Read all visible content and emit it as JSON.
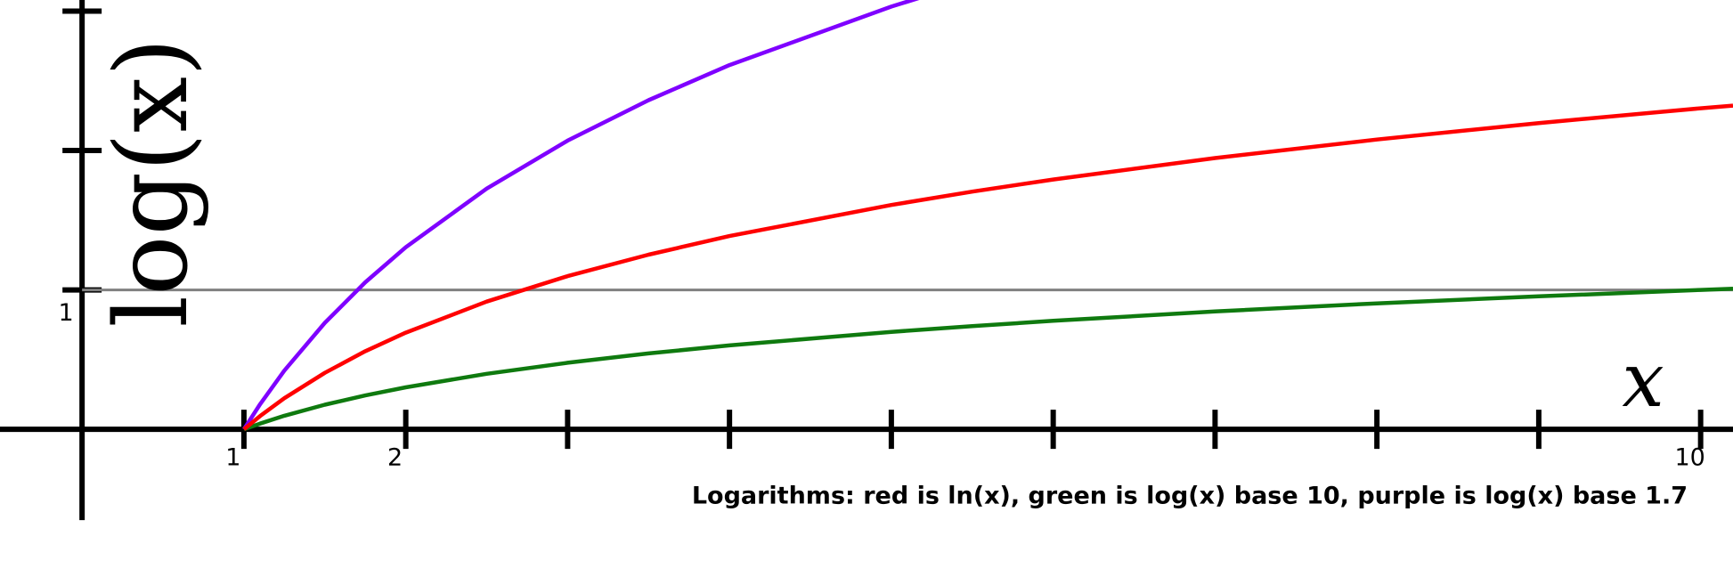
{
  "chart_data": {
    "type": "line",
    "x_label": "x",
    "y_label": "log(x)",
    "annotation": "Logarithms: red is ln(x), green is log(x) base 10, purple is log(x) base 1.7",
    "x": [
      1,
      1.1,
      1.25,
      1.5,
      1.75,
      2,
      2.5,
      3,
      3.5,
      4,
      5,
      5.5,
      6,
      7,
      8,
      9,
      10,
      10.2
    ],
    "series": [
      {
        "name": "ln(x)",
        "color": "#ff0000",
        "values": [
          0,
          0.095,
          0.223,
          0.405,
          0.56,
          0.693,
          0.916,
          1.099,
          1.253,
          1.386,
          1.609,
          1.705,
          1.792,
          1.946,
          2.079,
          2.197,
          2.303,
          2.322
        ]
      },
      {
        "name": "log(x) base 10",
        "color": "#0f7a0f",
        "values": [
          0,
          0.041,
          0.097,
          0.176,
          0.243,
          0.301,
          0.398,
          0.477,
          0.544,
          0.602,
          0.699,
          0.74,
          0.778,
          0.845,
          0.903,
          0.954,
          1,
          1.009
        ]
      },
      {
        "name": "log(x) base 1.7",
        "color": "#7f00ff",
        "values": [
          0,
          0.18,
          0.421,
          0.764,
          1.055,
          1.306,
          1.727,
          2.071,
          2.361,
          2.613,
          3.033,
          3.213,
          null,
          null,
          null,
          null,
          null,
          null
        ]
      }
    ],
    "xlim": [
      -0.507,
      10.2
    ],
    "ylim": [
      -1.06,
      3.08
    ],
    "xticks": [
      1,
      2,
      {
        "value": 3
      },
      {
        "value": 4
      },
      {
        "value": 5
      },
      {
        "value": 6
      },
      {
        "value": 7
      },
      {
        "value": 8
      },
      {
        "value": 9
      },
      10
    ],
    "yticks": [
      1,
      {
        "value": 2
      },
      {
        "value": 3
      }
    ],
    "reference_line": {
      "y": 1,
      "color": "#808080"
    }
  }
}
